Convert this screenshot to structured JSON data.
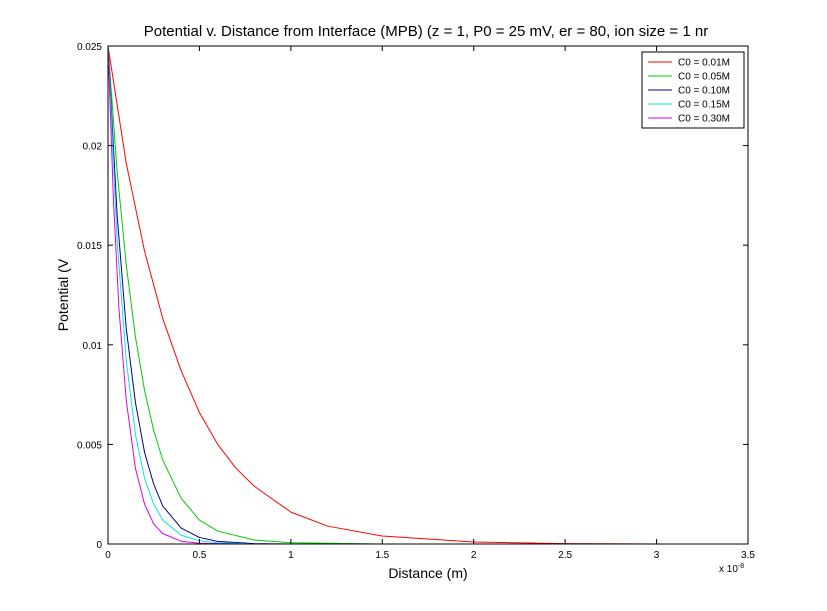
{
  "chart_data": {
    "type": "line",
    "title": "Potential v. Distance from Interface (MPB) (z = 1, P0 = 25 mV, er = 80, ion size = 1 nr",
    "xlabel": "Distance (m)",
    "ylabel": "Potential (V",
    "x_exponent_label": "x 10",
    "x_exponent_power": "-8",
    "xlim": [
      0,
      3.5e-08
    ],
    "ylim": [
      0,
      0.025
    ],
    "xticks": [
      0,
      0.5,
      1,
      1.5,
      2,
      2.5,
      3,
      3.5
    ],
    "xtick_labels": [
      "0",
      "0.5",
      "1",
      "1.5",
      "2",
      "2.5",
      "3",
      "3.5"
    ],
    "yticks": [
      0,
      0.005,
      0.01,
      0.015,
      0.02,
      0.025
    ],
    "ytick_labels": [
      "0",
      "0.005",
      "0.01",
      "0.015",
      "0.02",
      "0.025"
    ],
    "grid": false,
    "legend_position": "top-right",
    "series": [
      {
        "name": "C0 = 0.01M",
        "color": "#ff0000",
        "x": [
          0,
          1e-09,
          2e-09,
          3e-09,
          4e-09,
          5e-09,
          6e-09,
          7e-09,
          8e-09,
          1e-08,
          1.2e-08,
          1.5e-08,
          2e-08,
          2.5e-08,
          3e-08
        ],
        "values": [
          0.025,
          0.0191,
          0.0147,
          0.0113,
          0.0087,
          0.0066,
          0.005,
          0.0038,
          0.0029,
          0.0016,
          0.0009,
          0.0004,
          0.0001,
          2e-05,
          0.0
        ]
      },
      {
        "name": "C0 = 0.05M",
        "color": "#00cc00",
        "x": [
          0,
          5e-10,
          1e-09,
          1.5e-09,
          2e-09,
          2.5e-09,
          3e-09,
          4e-09,
          5e-09,
          6e-09,
          8e-09,
          1e-08,
          1.5e-08,
          2e-08,
          3e-08
        ],
        "values": [
          0.025,
          0.0187,
          0.014,
          0.0104,
          0.0077,
          0.0057,
          0.0042,
          0.0023,
          0.0012,
          0.00065,
          0.0002,
          6e-05,
          0.0,
          0.0,
          0.0
        ]
      },
      {
        "name": "C0 = 0.10M",
        "color": "#00008b",
        "x": [
          0,
          5e-10,
          1e-09,
          1.5e-09,
          2e-09,
          2.5e-09,
          3e-09,
          4e-09,
          5e-09,
          6e-09,
          8e-09,
          1e-08,
          2e-08,
          3e-08
        ],
        "values": [
          0.025,
          0.0165,
          0.0108,
          0.0071,
          0.0046,
          0.003,
          0.0019,
          0.0008,
          0.00033,
          0.00013,
          2e-05,
          0.0,
          0.0,
          0.0
        ]
      },
      {
        "name": "C0 = 0.15M",
        "color": "#00e5ee",
        "x": [
          0,
          5e-10,
          1e-09,
          1.5e-09,
          2e-09,
          2.5e-09,
          3e-09,
          4e-09,
          5e-09,
          6e-09,
          8e-09,
          1e-08,
          2e-08,
          3e-08
        ],
        "values": [
          0.025,
          0.0152,
          0.0092,
          0.0055,
          0.0033,
          0.002,
          0.0012,
          0.00044,
          0.00016,
          6e-05,
          0.0,
          0.0,
          0.0,
          0.0
        ]
      },
      {
        "name": "C0 = 0.30M",
        "color": "#e000e0",
        "x": [
          0,
          3e-10,
          6e-10,
          1e-09,
          1.5e-09,
          2e-09,
          2.5e-09,
          3e-09,
          4e-09,
          5e-09,
          7e-09,
          1e-08,
          2e-08,
          3e-08
        ],
        "values": [
          0.025,
          0.0172,
          0.0118,
          0.0072,
          0.0038,
          0.002,
          0.001,
          0.00052,
          0.00014,
          4e-05,
          0.0,
          0.0,
          0.0,
          0.0
        ]
      }
    ]
  }
}
